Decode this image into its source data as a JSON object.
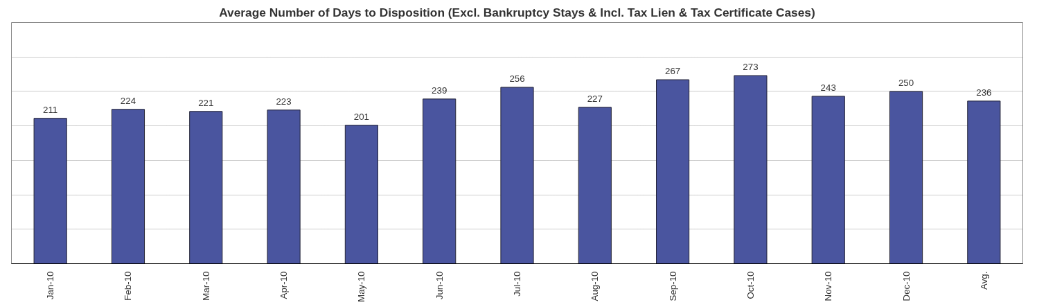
{
  "chart_data": {
    "type": "bar",
    "title": "Average Number of Days to Disposition (Excl. Bankruptcy Stays & Incl. Tax Lien & Tax Certificate Cases)",
    "categories": [
      "Jan-10",
      "Feb-10",
      "Mar-10",
      "Apr-10",
      "May-10",
      "Jun-10",
      "Jul-10",
      "Aug-10",
      "Sep-10",
      "Oct-10",
      "Nov-10",
      "Dec-10",
      "Avg."
    ],
    "values": [
      211,
      224,
      221,
      223,
      201,
      239,
      256,
      227,
      267,
      273,
      243,
      250,
      236
    ],
    "color": "#4a559f",
    "ylim": [
      0,
      350
    ],
    "yticks": [
      {
        "value": 0,
        "label": null
      },
      {
        "value": 50,
        "label": null
      },
      {
        "value": 100,
        "label": null
      },
      {
        "value": 150,
        "label": null
      },
      {
        "value": 200,
        "label": null
      },
      {
        "value": 250,
        "label": null
      },
      {
        "value": 300,
        "label": null
      },
      {
        "value": 350,
        "label": null
      }
    ],
    "grid": "y",
    "tick_labels": "x",
    "data_labels": true
  }
}
